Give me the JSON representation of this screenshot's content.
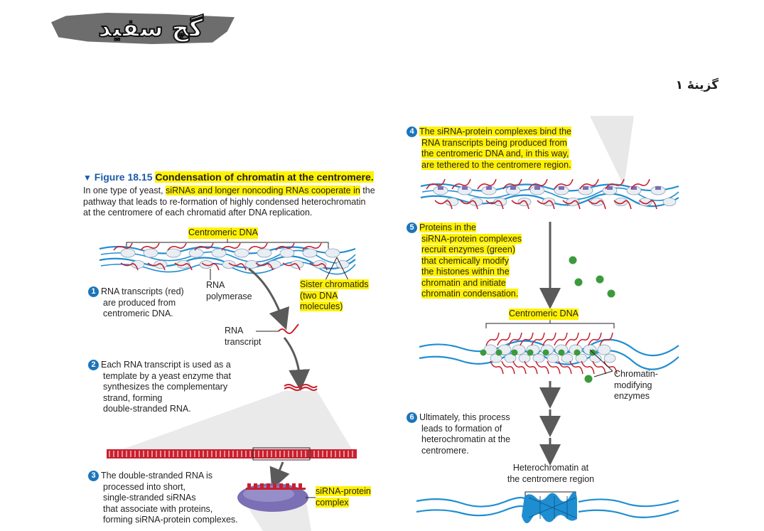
{
  "logo": {
    "text": "گچ سفید"
  },
  "option_label": "گزینهٔ ۱",
  "figure": {
    "number": "Figure 18.15",
    "title": "Condensation of chromatin at the centromere.",
    "caption_lines": [
      [
        "In one type of yeast, ",
        "siRNAs and longer noncoding RNAs cooperate in",
        " the"
      ],
      [
        "pathway that leads to re-formation of highly condensed heterochromatin"
      ],
      [
        "at the centromere of each chromatid after DNA replication."
      ]
    ]
  },
  "labels": {
    "centromeric_dna_top": "Centromeric DNA",
    "centromeric_dna_right": "Centromeric DNA",
    "rna_polymerase": [
      "RNA",
      "polymerase"
    ],
    "sister_chromatids": [
      "Sister chromatids",
      "(two DNA",
      "molecules)"
    ],
    "rna_transcript": [
      "RNA",
      "transcript"
    ],
    "sirna_protein_complex": [
      "siRNA-protein",
      "complex"
    ],
    "chromatin_modifying_enzymes": [
      "Chromatin-",
      "modifying",
      "enzymes"
    ],
    "heterochromatin_region": [
      "Heterochromatin at",
      "the centromere region"
    ]
  },
  "steps": [
    {
      "number": "1",
      "lines": [
        "RNA transcripts (red)",
        "are produced from",
        "centromeric DNA."
      ]
    },
    {
      "number": "2",
      "lines": [
        "Each RNA transcript is used as a",
        "template by a yeast enzyme that",
        "synthesizes the complementary",
        "strand, forming",
        "double-stranded RNA."
      ]
    },
    {
      "number": "3",
      "lines": [
        "The double-stranded RNA is",
        "processed into short,",
        "single-stranded siRNAs",
        "that associate with proteins,",
        "forming siRNA-protein complexes."
      ]
    },
    {
      "number": "4",
      "lines": [
        "The siRNA-protein complexes bind the",
        "RNA transcripts being produced from",
        "the centromeric DNA and, in this way,",
        "are tethered to the centromere region."
      ]
    },
    {
      "number": "5",
      "lines": [
        "Proteins in the",
        "siRNA-protein complexes",
        "recruit enzymes (green)",
        "that chemically modify",
        "the histones within the",
        "chromatin and initiate",
        "chromatin condensation."
      ]
    },
    {
      "number": "6",
      "lines": [
        "Ultimately, this process",
        "leads to formation of",
        "heterochromatin at the",
        "centromere."
      ]
    }
  ],
  "colors": {
    "dna": "#1f8ed1",
    "rna": "#c8202f",
    "enzyme": "#3c9a3c",
    "highlight": "#fff200",
    "step_badge": "#1b75bb",
    "arrow": "#5a5a5a"
  }
}
